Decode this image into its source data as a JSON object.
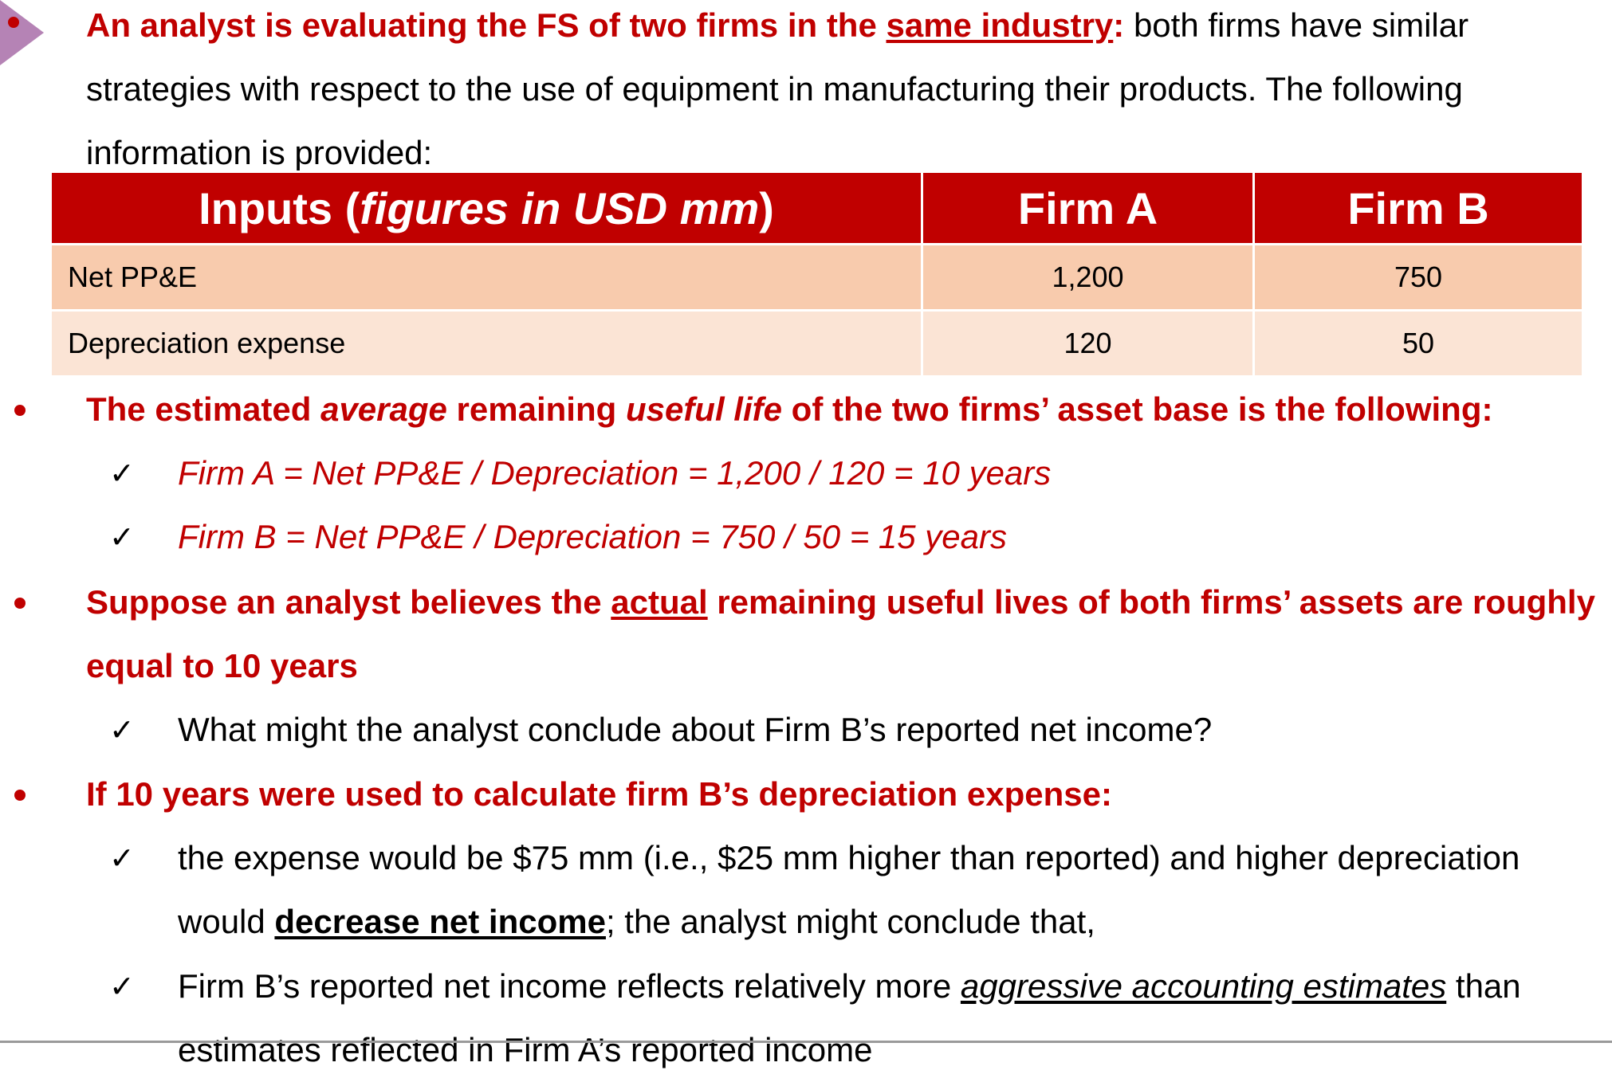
{
  "intro": {
    "bold_a": "An analyst is evaluating the FS of two firms in the ",
    "bold_u": "same industry",
    "bold_b": ":",
    "rest": " both firms have similar strategies with respect to the use of equipment in manufacturing their products. The following information is provided:"
  },
  "table": {
    "header": {
      "col1_a": "Inputs (",
      "col1_it": "figures in USD mm",
      "col1_b": ")",
      "col2": "Firm A",
      "col3": "Firm B"
    },
    "rows": [
      {
        "label": "Net PP&E",
        "a": "1,200",
        "b": "750"
      },
      {
        "label": "Depreciation expense",
        "a": "120",
        "b": "50"
      }
    ]
  },
  "b1": {
    "t1": "The estimated ",
    "t2": "average",
    "t3": " remaining ",
    "t4": "useful life",
    "t5": " of the two firms’ asset base is the following:"
  },
  "b1_items": [
    "Firm A = Net PP&E / Depreciation = 1,200 / 120 = 10 years",
    "Firm B = Net PP&E / Depreciation = 750 / 50 = 15 years"
  ],
  "b2": {
    "t1": "Suppose an analyst believes the ",
    "t2": "actual",
    "t3": " remaining useful lives of both firms’ assets are roughly equal to 10 years"
  },
  "b2_item": "What might the analyst conclude about Firm B’s reported net income?",
  "b3": "If 10 years were used to calculate firm B’s depreciation expense:",
  "b3_item1": {
    "t1": "the expense would be $75 mm (i.e., $25 mm higher than reported) and higher depreciation would ",
    "t2": "decrease net income",
    "t3": "; the analyst might conclude that,"
  },
  "b3_item2": {
    "t1": "Firm B’s reported net income reflects relatively more ",
    "t2": "aggressive accounting estimates",
    "t3": " than estimates reflected in Firm A’s reported income"
  },
  "check_glyph": "✓",
  "colors": {
    "accent": "#c00000",
    "row1": "#f8cbad",
    "row2": "#fbe4d5",
    "corner": "#b583b5"
  }
}
